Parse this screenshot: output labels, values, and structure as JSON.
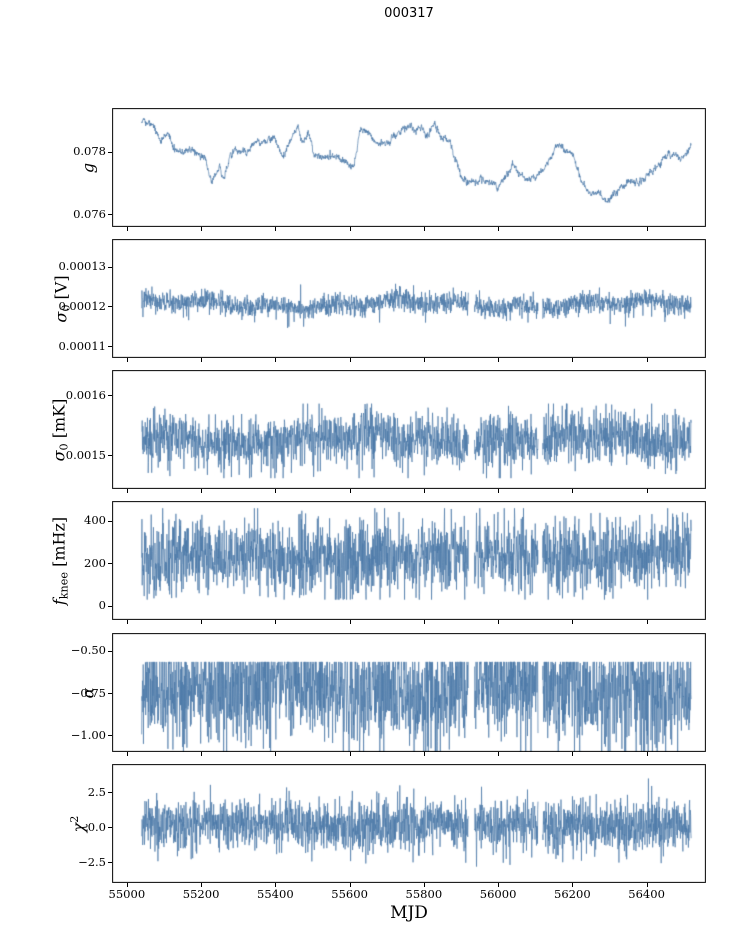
{
  "figure": {
    "bg": "#ffffff",
    "line_color": "#4a78a8",
    "axis_color": "#000000"
  },
  "chart_data": {
    "type": "line",
    "title": "000317",
    "xlabel": "MJD",
    "legend": "none",
    "grid": false,
    "x_axis": {
      "xlim": [
        54960,
        56560
      ],
      "ticks": [
        {
          "v": 55000,
          "label": "55000"
        },
        {
          "v": 55200,
          "label": "55200"
        },
        {
          "v": 55400,
          "label": "55400"
        },
        {
          "v": 55600,
          "label": "55600"
        },
        {
          "v": 55800,
          "label": "55800"
        },
        {
          "v": 56000,
          "label": "56000"
        },
        {
          "v": 56200,
          "label": "56200"
        },
        {
          "v": 56400,
          "label": "56400"
        }
      ],
      "data_start": 55040,
      "data_end": 56520,
      "n_points": 2200,
      "gaps": [
        [
          55920,
          55936
        ],
        [
          56108,
          56120
        ]
      ]
    },
    "panels": [
      {
        "id": "g",
        "ylabel_text": "g",
        "ylabel_parts": [
          {
            "text": "g",
            "kind": "italic"
          }
        ],
        "ylim": [
          0.0756,
          0.0794
        ],
        "yticks": [
          {
            "v": 0.078,
            "label": "0.078"
          },
          {
            "v": 0.076,
            "label": "0.076"
          }
        ],
        "use_gaps": false,
        "series": {
          "kind": "smooth",
          "noise": 0.00016,
          "keypoints": [
            [
              55040,
              0.079
            ],
            [
              55070,
              0.0789
            ],
            [
              55090,
              0.0783
            ],
            [
              55110,
              0.0786
            ],
            [
              55130,
              0.0781
            ],
            [
              55150,
              0.078
            ],
            [
              55170,
              0.0781
            ],
            [
              55190,
              0.0779
            ],
            [
              55210,
              0.0778
            ],
            [
              55230,
              0.077
            ],
            [
              55250,
              0.0776
            ],
            [
              55260,
              0.0771
            ],
            [
              55280,
              0.078
            ],
            [
              55300,
              0.0781
            ],
            [
              55320,
              0.0779
            ],
            [
              55340,
              0.0783
            ],
            [
              55360,
              0.0783
            ],
            [
              55380,
              0.0784
            ],
            [
              55400,
              0.0784
            ],
            [
              55420,
              0.0779
            ],
            [
              55440,
              0.0784
            ],
            [
              55460,
              0.0789
            ],
            [
              55470,
              0.0783
            ],
            [
              55490,
              0.0786
            ],
            [
              55510,
              0.0778
            ],
            [
              55530,
              0.0778
            ],
            [
              55550,
              0.0779
            ],
            [
              55570,
              0.0778
            ],
            [
              55590,
              0.0777
            ],
            [
              55610,
              0.0775
            ],
            [
              55630,
              0.0788
            ],
            [
              55650,
              0.0786
            ],
            [
              55670,
              0.0783
            ],
            [
              55690,
              0.0782
            ],
            [
              55710,
              0.0783
            ],
            [
              55730,
              0.0786
            ],
            [
              55750,
              0.0788
            ],
            [
              55770,
              0.0787
            ],
            [
              55790,
              0.0788
            ],
            [
              55810,
              0.0785
            ],
            [
              55830,
              0.0789
            ],
            [
              55850,
              0.0784
            ],
            [
              55870,
              0.0784
            ],
            [
              55880,
              0.0779
            ],
            [
              55900,
              0.0772
            ],
            [
              55920,
              0.077
            ],
            [
              55940,
              0.077
            ],
            [
              55960,
              0.0771
            ],
            [
              55980,
              0.077
            ],
            [
              56000,
              0.0769
            ],
            [
              56020,
              0.0772
            ],
            [
              56040,
              0.0776
            ],
            [
              56060,
              0.0773
            ],
            [
              56080,
              0.0771
            ],
            [
              56100,
              0.0772
            ],
            [
              56120,
              0.0774
            ],
            [
              56140,
              0.0778
            ],
            [
              56160,
              0.0782
            ],
            [
              56180,
              0.0781
            ],
            [
              56200,
              0.0779
            ],
            [
              56220,
              0.0772
            ],
            [
              56240,
              0.0768
            ],
            [
              56260,
              0.0767
            ],
            [
              56280,
              0.0766
            ],
            [
              56300,
              0.0764
            ],
            [
              56320,
              0.0768
            ],
            [
              56340,
              0.077
            ],
            [
              56360,
              0.0771
            ],
            [
              56380,
              0.077
            ],
            [
              56400,
              0.0773
            ],
            [
              56420,
              0.0774
            ],
            [
              56440,
              0.0777
            ],
            [
              56460,
              0.0779
            ],
            [
              56480,
              0.0779
            ],
            [
              56500,
              0.0778
            ],
            [
              56520,
              0.0782
            ]
          ]
        }
      },
      {
        "id": "sigma0-v",
        "ylabel_text": "σ0 [V]",
        "ylabel_parts": [
          {
            "text": "σ",
            "kind": "italic"
          },
          {
            "text": "0",
            "kind": "sub"
          },
          {
            "text": " [V]",
            "kind": "normal"
          }
        ],
        "ylim": [
          0.000107,
          0.000137
        ],
        "yticks": [
          {
            "v": 0.00013,
            "label": "0.00013"
          },
          {
            "v": 0.00012,
            "label": "0.00012"
          },
          {
            "v": 0.00011,
            "label": "0.00011"
          }
        ],
        "use_gaps": true,
        "series": {
          "kind": "noisy",
          "baseline": 0.0001205,
          "noise": 1.3e-06,
          "drift": 1.2e-06,
          "spike_rate": 0.015,
          "spike_scale": 4e-06,
          "spike_sign": -1,
          "clip": [
            0.0001112,
            0.0001278
          ]
        }
      },
      {
        "id": "sigma0-mk",
        "ylabel_text": "σ0 [mK]",
        "ylabel_parts": [
          {
            "text": "σ",
            "kind": "italic"
          },
          {
            "text": "0",
            "kind": "sub"
          },
          {
            "text": " [mK]",
            "kind": "normal"
          }
        ],
        "ylim": [
          0.001444,
          0.001642
        ],
        "yticks": [
          {
            "v": 0.0016,
            "label": "0.0016"
          },
          {
            "v": 0.0015,
            "label": "0.0015"
          }
        ],
        "use_gaps": true,
        "series": {
          "kind": "noisy",
          "baseline": 0.001527,
          "noise": 2.2e-05,
          "drift": 1e-05,
          "spike_rate": 0.02,
          "spike_scale": 4e-05,
          "spike_sign": -1,
          "clip": [
            0.001462,
            0.001586
          ]
        }
      },
      {
        "id": "fknee",
        "ylabel_text": "fknee [mHz]",
        "ylabel_parts": [
          {
            "text": "f",
            "kind": "italic"
          },
          {
            "text": "knee",
            "kind": "sub"
          },
          {
            "text": " [mHz]",
            "kind": "normal"
          }
        ],
        "ylim": [
          -66,
          494
        ],
        "yticks": [
          {
            "v": 400,
            "label": "400"
          },
          {
            "v": 200,
            "label": "200"
          },
          {
            "v": 0,
            "label": "0"
          }
        ],
        "use_gaps": true,
        "series": {
          "kind": "noisy",
          "baseline": 235,
          "noise": 90,
          "drift": 18,
          "spike_rate": 0.02,
          "spike_scale": 80,
          "spike_sign": 0,
          "clip": [
            30,
            460
          ]
        }
      },
      {
        "id": "alpha",
        "ylabel_text": "α",
        "ylabel_parts": [
          {
            "text": "α",
            "kind": "italic"
          }
        ],
        "ylim": [
          -1.101,
          -0.393
        ],
        "yticks": [
          {
            "v": -0.5,
            "label": "−0.50"
          },
          {
            "v": -0.75,
            "label": "−0.75"
          },
          {
            "v": -1.0,
            "label": "−1.00"
          }
        ],
        "use_gaps": true,
        "series": {
          "kind": "noisy",
          "baseline": -0.72,
          "noise": 0.16,
          "drift": 0.04,
          "spike_rate": 0.04,
          "spike_scale": 0.22,
          "spike_sign": -1,
          "clip": [
            -1.32,
            -0.565
          ]
        }
      },
      {
        "id": "chi2",
        "ylabel_text": "χ2",
        "ylabel_parts": [
          {
            "text": "χ",
            "kind": "italic"
          },
          {
            "text": "2",
            "kind": "sup"
          }
        ],
        "ylim": [
          -4.0,
          4.5
        ],
        "yticks": [
          {
            "v": 2.5,
            "label": "2.5"
          },
          {
            "v": 0.0,
            "label": "0.0"
          },
          {
            "v": -2.5,
            "label": "−2.5"
          }
        ],
        "use_gaps": true,
        "series": {
          "kind": "noisy",
          "baseline": 0.15,
          "noise": 0.95,
          "drift": 0.12,
          "spike_rate": 0.015,
          "spike_scale": 1.3,
          "spike_sign": 0,
          "clip": [
            -3.6,
            3.5
          ]
        }
      }
    ]
  }
}
